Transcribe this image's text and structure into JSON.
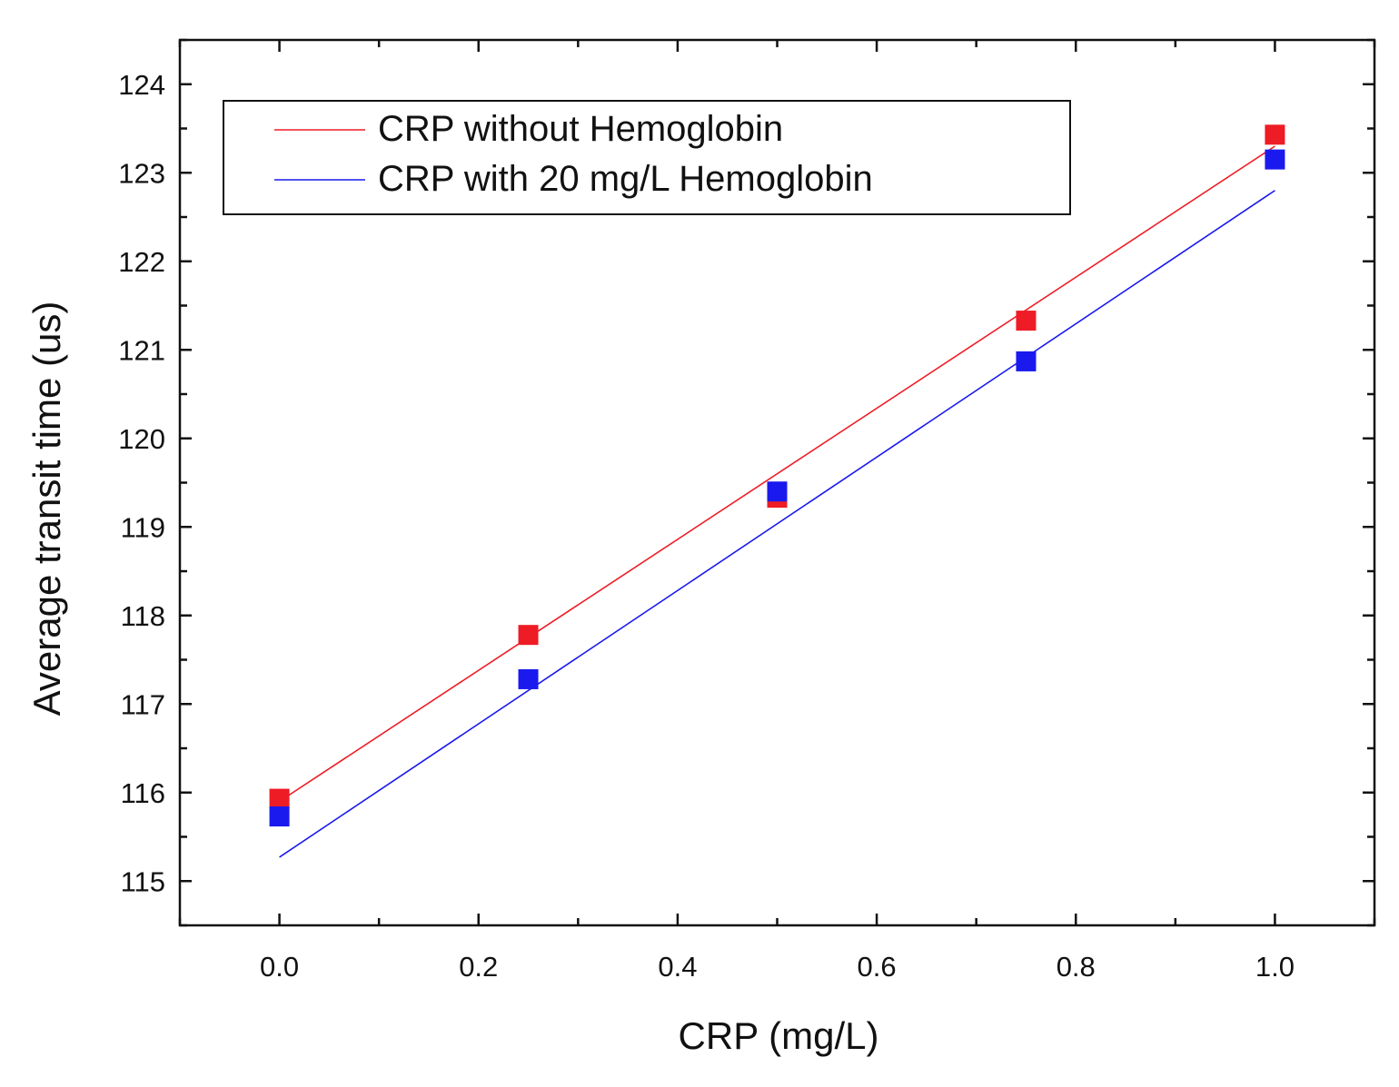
{
  "chart_data": {
    "type": "scatter",
    "title": "",
    "xlabel": "CRP (mg/L)",
    "ylabel": "Average transit time (us)",
    "xlim": [
      -0.1,
      1.1
    ],
    "ylim": [
      114.5,
      124.5
    ],
    "xticks": [
      0.0,
      0.2,
      0.4,
      0.6,
      0.8,
      1.0
    ],
    "xtick_labels": [
      "0.0",
      "0.2",
      "0.4",
      "0.6",
      "0.8",
      "1.0"
    ],
    "yticks": [
      115,
      116,
      117,
      118,
      119,
      120,
      121,
      122,
      123,
      124
    ],
    "ytick_labels": [
      "115",
      "116",
      "117",
      "118",
      "119",
      "120",
      "121",
      "122",
      "123",
      "124"
    ],
    "grid": false,
    "legend_position": "top-left",
    "series": [
      {
        "name": "CRP without Hemoglobin",
        "color": "#ee1c25",
        "marker": "square",
        "x": [
          0.0,
          0.25,
          0.5,
          0.75,
          1.0
        ],
        "y": [
          115.93,
          117.78,
          119.33,
          121.33,
          123.43
        ],
        "fit": {
          "x": [
            0.0,
            1.0
          ],
          "y": [
            115.9,
            123.3
          ]
        }
      },
      {
        "name": "CRP with 20 mg/L Hemoglobin",
        "color": "#1a1aee",
        "marker": "square",
        "x": [
          0.0,
          0.25,
          0.5,
          0.75,
          1.0
        ],
        "y": [
          115.73,
          117.28,
          119.4,
          120.87,
          123.15
        ],
        "fit": {
          "x": [
            0.0,
            1.0
          ],
          "y": [
            115.27,
            122.8
          ]
        }
      }
    ]
  }
}
